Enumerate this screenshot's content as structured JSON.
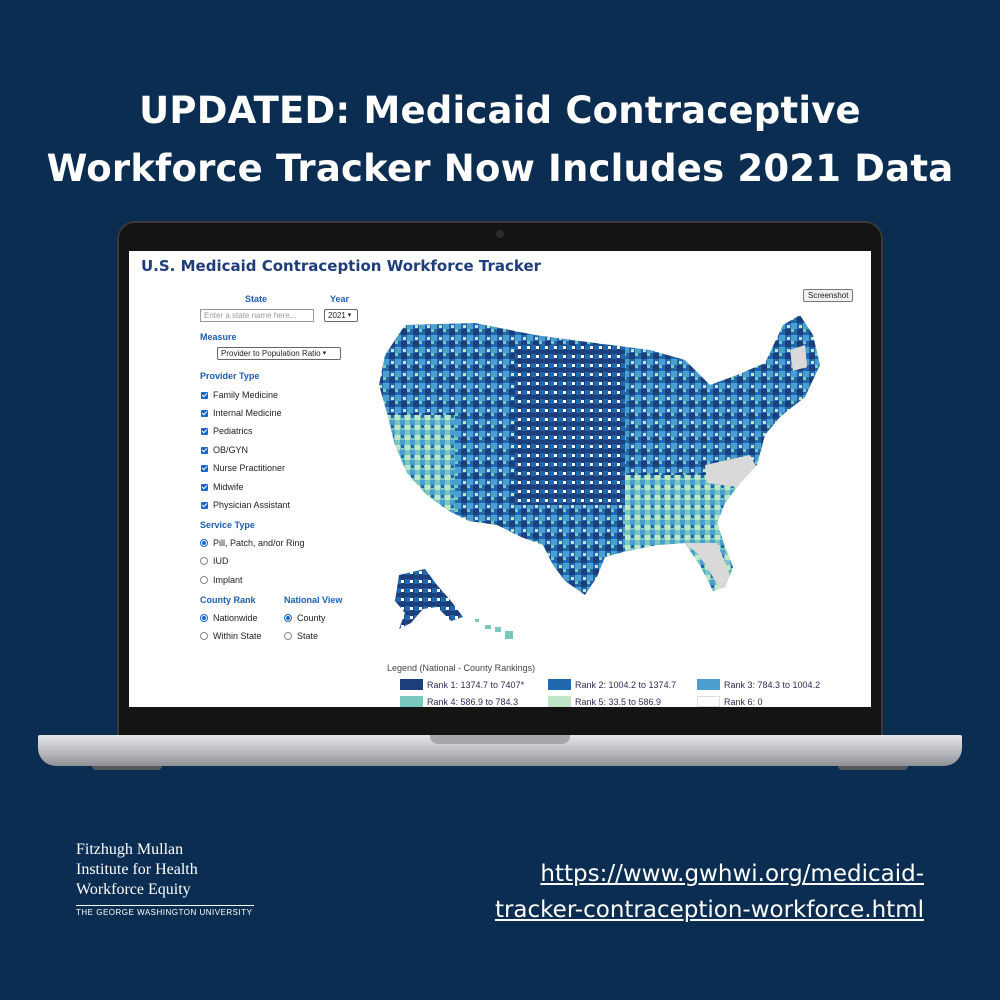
{
  "headline": {
    "line1": "UPDATED: Medicaid Contraceptive",
    "line2": "Workforce Tracker Now Includes 2021 Data"
  },
  "tracker": {
    "title": "U.S. Medicaid Contraception Workforce Tracker",
    "state_label": "State",
    "state_placeholder": "Enter a state name here...",
    "year_label": "Year",
    "year_value": "2021",
    "measure_label": "Measure",
    "measure_value": "Provider to Population Ratio",
    "provider_type_label": "Provider Type",
    "provider_types": [
      {
        "label": "Family Medicine",
        "checked": true
      },
      {
        "label": "Internal Medicine",
        "checked": true
      },
      {
        "label": "Pediatrics",
        "checked": true
      },
      {
        "label": "OB/GYN",
        "checked": true
      },
      {
        "label": "Nurse Practitioner",
        "checked": true
      },
      {
        "label": "Midwife",
        "checked": true
      },
      {
        "label": "Physician Assistant",
        "checked": true
      }
    ],
    "service_type_label": "Service Type",
    "service_types": [
      {
        "label": "Pill, Patch, and/or Ring",
        "selected": true
      },
      {
        "label": "IUD",
        "selected": false
      },
      {
        "label": "Implant",
        "selected": false
      }
    ],
    "county_rank_label": "County Rank",
    "county_rank_options": [
      {
        "label": "Nationwide",
        "selected": true
      },
      {
        "label": "Within State",
        "selected": false
      }
    ],
    "national_view_label": "National View",
    "national_view_options": [
      {
        "label": "County",
        "selected": true
      },
      {
        "label": "State",
        "selected": false
      }
    ],
    "screenshot_button": "Screenshot",
    "legend": {
      "title": "Legend (National - County Rankings)",
      "items": [
        {
          "label": "Rank 1: 1374.7 to 7407*",
          "color": "#1c3f7c"
        },
        {
          "label": "Rank 2: 1004.2 to 1374.7",
          "color": "#1f68ad"
        },
        {
          "label": "Rank 3: 784.3 to 1004.2",
          "color": "#4a9fd0"
        },
        {
          "label": "Rank 4: 586.9 to 784.3",
          "color": "#79c8bf"
        },
        {
          "label": "Rank 5: 33.5 to 586.9",
          "color": "#bfe7c6"
        },
        {
          "label": "Rank 6: 0",
          "color": "#ffffff"
        }
      ]
    },
    "map_colors": {
      "rank1": "#1c3f7c",
      "rank2": "#1f68ad",
      "rank3": "#4a9fd0",
      "rank4": "#79c8bf",
      "rank5": "#bfe7c6",
      "no_data": "#d9d9d9"
    }
  },
  "footer": {
    "org_line1": "Fitzhugh Mullan",
    "org_line2": "Institute for Health",
    "org_line3": "Workforce Equity",
    "university": "THE GEORGE WASHINGTON UNIVERSITY",
    "url_line1": "https://www.gwhwi.org/medicaid-",
    "url_line2": "tracker-contraception-workforce.html"
  }
}
